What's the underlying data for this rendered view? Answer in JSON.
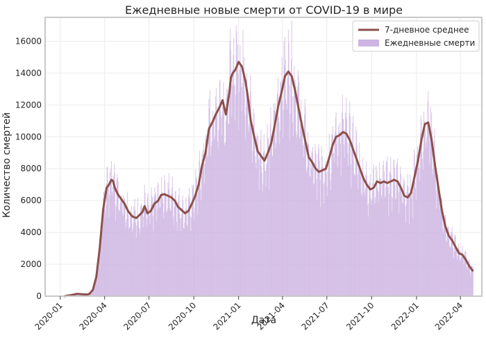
{
  "chart_data": {
    "type": "bar",
    "title": "Ежедневные новые смерти от COVID-19 в мире",
    "xlabel": "Дата",
    "ylabel": "Количество смертей",
    "ylim": [
      0,
      17500
    ],
    "xlim": [
      "2019-12-01",
      "2022-05-15"
    ],
    "yticks": [
      0,
      2000,
      4000,
      6000,
      8000,
      10000,
      12000,
      14000,
      16000
    ],
    "xticks": [
      "2020-01",
      "2020-04",
      "2020-07",
      "2020-10",
      "2021-01",
      "2021-04",
      "2021-07",
      "2021-10",
      "2022-01",
      "2022-04"
    ],
    "grid": true,
    "legend": "top-right",
    "series": [
      {
        "name": "7-дневное среднее",
        "kind": "line",
        "color": "#8c4f4a",
        "x": [
          "2020-01-10",
          "2020-01-25",
          "2020-02-05",
          "2020-02-15",
          "2020-02-25",
          "2020-03-01",
          "2020-03-08",
          "2020-03-15",
          "2020-03-22",
          "2020-03-29",
          "2020-04-05",
          "2020-04-10",
          "2020-04-15",
          "2020-04-18",
          "2020-04-22",
          "2020-04-28",
          "2020-05-05",
          "2020-05-12",
          "2020-05-20",
          "2020-05-28",
          "2020-06-05",
          "2020-06-12",
          "2020-06-18",
          "2020-06-22",
          "2020-06-28",
          "2020-07-05",
          "2020-07-12",
          "2020-07-20",
          "2020-07-26",
          "2020-08-02",
          "2020-08-09",
          "2020-08-16",
          "2020-08-23",
          "2020-08-30",
          "2020-09-06",
          "2020-09-13",
          "2020-09-20",
          "2020-09-27",
          "2020-10-04",
          "2020-10-11",
          "2020-10-18",
          "2020-10-25",
          "2020-11-01",
          "2020-11-08",
          "2020-11-15",
          "2020-11-22",
          "2020-11-29",
          "2020-12-06",
          "2020-12-13",
          "2020-12-16",
          "2020-12-20",
          "2020-12-25",
          "2021-01-01",
          "2021-01-08",
          "2021-01-15",
          "2021-01-20",
          "2021-01-26",
          "2021-02-02",
          "2021-02-09",
          "2021-02-16",
          "2021-02-23",
          "2021-03-02",
          "2021-03-09",
          "2021-03-16",
          "2021-03-23",
          "2021-03-30",
          "2021-04-06",
          "2021-04-13",
          "2021-04-20",
          "2021-04-27",
          "2021-05-04",
          "2021-05-11",
          "2021-05-18",
          "2021-05-25",
          "2021-06-01",
          "2021-06-08",
          "2021-06-15",
          "2021-06-22",
          "2021-06-29",
          "2021-07-06",
          "2021-07-13",
          "2021-07-20",
          "2021-07-27",
          "2021-08-03",
          "2021-08-10",
          "2021-08-17",
          "2021-08-24",
          "2021-08-31",
          "2021-09-07",
          "2021-09-14",
          "2021-09-21",
          "2021-09-28",
          "2021-10-05",
          "2021-10-12",
          "2021-10-19",
          "2021-10-26",
          "2021-11-02",
          "2021-11-09",
          "2021-11-16",
          "2021-11-23",
          "2021-11-30",
          "2021-12-07",
          "2021-12-14",
          "2021-12-21",
          "2021-12-28",
          "2022-01-04",
          "2022-01-11",
          "2022-01-18",
          "2022-01-25",
          "2022-02-01",
          "2022-02-08",
          "2022-02-15",
          "2022-02-22",
          "2022-03-01",
          "2022-03-08",
          "2022-03-15",
          "2022-03-22",
          "2022-03-29",
          "2022-04-05",
          "2022-04-12",
          "2022-04-19",
          "2022-04-26"
        ],
        "values": [
          0,
          80,
          150,
          120,
          100,
          150,
          400,
          1200,
          3000,
          5400,
          6800,
          7000,
          7300,
          7250,
          6800,
          6400,
          6100,
          5800,
          5300,
          5000,
          4900,
          5100,
          5300,
          5650,
          5200,
          5350,
          5800,
          6000,
          6350,
          6400,
          6300,
          6200,
          6000,
          5600,
          5400,
          5200,
          5350,
          5800,
          6300,
          7000,
          8200,
          9000,
          10500,
          10900,
          11400,
          11800,
          12300,
          11400,
          12800,
          13700,
          14000,
          14200,
          14700,
          14400,
          13500,
          12500,
          11000,
          10000,
          9100,
          8800,
          8500,
          9000,
          9600,
          10700,
          11900,
          12800,
          13800,
          14100,
          13800,
          12900,
          11800,
          10700,
          9700,
          8700,
          8400,
          8000,
          7800,
          7900,
          8000,
          8700,
          9500,
          10000,
          10100,
          10300,
          10200,
          9800,
          9200,
          8600,
          8000,
          7400,
          7000,
          6700,
          6800,
          7200,
          7100,
          7200,
          7100,
          7200,
          7300,
          7200,
          6800,
          6300,
          6200,
          6500,
          7500,
          8500,
          9800,
          10800,
          10900,
          9800,
          8200,
          6800,
          5400,
          4400,
          3800,
          3500,
          3100,
          2700,
          2600,
          2300,
          1900,
          1600
        ]
      },
      {
        "name": "Ежедневные смерти",
        "kind": "bar",
        "color": "#cdb4e2"
      }
    ]
  }
}
